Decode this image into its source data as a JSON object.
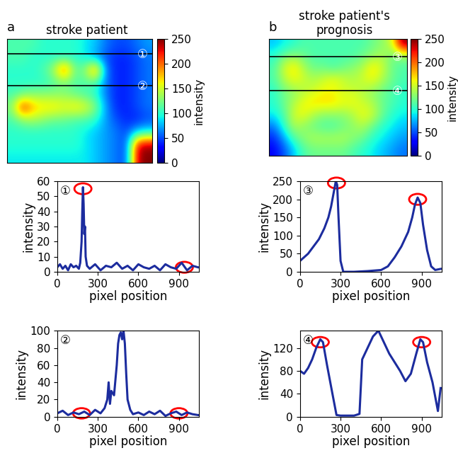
{
  "chart_data": [
    {
      "type": "heatmap",
      "panel": "a",
      "title": "stroke patient",
      "tick_labels": false,
      "cells": [
        [
          110,
          110,
          110,
          100,
          100,
          100,
          100,
          90,
          80,
          60,
          50,
          50,
          60,
          70
        ],
        [
          110,
          110,
          100,
          100,
          100,
          100,
          100,
          90,
          70,
          50,
          40,
          40,
          50,
          60
        ],
        [
          100,
          100,
          100,
          110,
          140,
          220,
          120,
          130,
          210,
          60,
          40,
          40,
          50,
          60
        ],
        [
          100,
          100,
          100,
          100,
          110,
          120,
          110,
          110,
          110,
          60,
          40,
          40,
          50,
          60
        ],
        [
          110,
          120,
          130,
          130,
          130,
          130,
          120,
          110,
          100,
          60,
          40,
          40,
          50,
          60
        ],
        [
          130,
          230,
          180,
          170,
          170,
          160,
          170,
          160,
          130,
          70,
          40,
          40,
          50,
          60
        ],
        [
          110,
          130,
          140,
          130,
          120,
          120,
          110,
          110,
          100,
          70,
          50,
          40,
          40,
          50
        ],
        [
          100,
          100,
          100,
          100,
          100,
          100,
          100,
          90,
          80,
          70,
          60,
          50,
          80,
          90
        ],
        [
          100,
          100,
          100,
          100,
          100,
          100,
          100,
          90,
          80,
          70,
          60,
          50,
          230,
          240
        ],
        [
          90,
          90,
          90,
          90,
          90,
          90,
          90,
          90,
          80,
          70,
          60,
          50,
          240,
          250
        ]
      ],
      "colorbar": {
        "range": [
          0,
          250
        ],
        "ticks": [
          0,
          50,
          100,
          150,
          200,
          250
        ],
        "label": "intensity"
      },
      "lines": [
        {
          "label": "①",
          "row": 0.7
        },
        {
          "label": "②",
          "row": 3.3
        }
      ]
    },
    {
      "type": "heatmap",
      "panel": "b",
      "title": "stroke patient's\nprognosis",
      "tick_labels": false,
      "cells": [
        [
          80,
          90,
          100,
          110,
          110,
          110,
          110,
          110,
          110,
          110,
          120,
          130,
          150,
          250
        ],
        [
          100,
          120,
          130,
          120,
          110,
          110,
          110,
          110,
          110,
          120,
          130,
          140,
          120,
          130
        ],
        [
          110,
          150,
          170,
          140,
          120,
          120,
          110,
          120,
          130,
          140,
          170,
          150,
          120,
          110
        ],
        [
          110,
          140,
          160,
          150,
          140,
          150,
          160,
          150,
          140,
          150,
          160,
          140,
          120,
          110
        ],
        [
          100,
          120,
          130,
          140,
          150,
          160,
          160,
          150,
          150,
          140,
          130,
          120,
          110,
          100
        ],
        [
          100,
          120,
          140,
          160,
          170,
          170,
          170,
          160,
          160,
          150,
          140,
          120,
          110,
          100
        ],
        [
          90,
          110,
          150,
          160,
          140,
          130,
          130,
          130,
          140,
          160,
          150,
          120,
          100,
          90
        ],
        [
          60,
          100,
          140,
          130,
          120,
          110,
          110,
          120,
          130,
          140,
          120,
          100,
          90,
          80
        ],
        [
          40,
          70,
          110,
          130,
          140,
          140,
          140,
          140,
          130,
          120,
          100,
          90,
          80,
          70
        ],
        [
          30,
          50,
          80,
          110,
          120,
          120,
          120,
          120,
          110,
          100,
          90,
          80,
          70,
          60
        ]
      ],
      "colorbar": {
        "range": [
          0,
          250
        ],
        "ticks": [
          0,
          50,
          100,
          150,
          200,
          250
        ],
        "label": "intensity"
      },
      "lines": [
        {
          "label": "③",
          "row": 1.0
        },
        {
          "label": "④",
          "row": 3.9
        }
      ]
    },
    {
      "type": "line",
      "label": "①",
      "x_label": "pixel position",
      "y_label": "intensity",
      "xlim": [
        0,
        1050
      ],
      "xticks": [
        0,
        300,
        600,
        900
      ],
      "ylim": [
        0,
        60
      ],
      "yticks": [
        0,
        10,
        20,
        30,
        40,
        50,
        60
      ],
      "x": [
        0,
        20,
        40,
        60,
        80,
        100,
        120,
        140,
        160,
        170,
        180,
        185,
        190,
        195,
        200,
        205,
        210,
        220,
        240,
        280,
        320,
        360,
        400,
        440,
        480,
        520,
        560,
        600,
        640,
        680,
        720,
        760,
        800,
        840,
        880,
        920,
        960,
        1000,
        1040
      ],
      "series": [
        {
          "color": "#1c2c9e",
          "values": [
            3,
            5,
            2,
            4,
            1,
            5,
            3,
            4,
            2,
            6,
            20,
            40,
            56,
            45,
            25,
            30,
            10,
            4,
            2,
            5,
            1,
            4,
            3,
            6,
            2,
            4,
            1,
            5,
            3,
            2,
            4,
            1,
            5,
            3,
            2,
            6,
            1,
            4,
            3
          ]
        }
      ],
      "highlights": [
        {
          "x": 190,
          "y": 55
        },
        {
          "x": 940,
          "y": 3
        }
      ]
    },
    {
      "type": "line",
      "label": "②",
      "x_label": "pixel position",
      "y_label": "intensity",
      "xlim": [
        0,
        1050
      ],
      "xticks": [
        0,
        300,
        600,
        900
      ],
      "ylim": [
        0,
        100
      ],
      "yticks": [
        0,
        20,
        40,
        60,
        80,
        100
      ],
      "x": [
        0,
        40,
        80,
        120,
        160,
        200,
        240,
        280,
        320,
        350,
        370,
        380,
        390,
        400,
        420,
        440,
        450,
        460,
        470,
        480,
        490,
        500,
        510,
        520,
        540,
        560,
        600,
        640,
        680,
        720,
        760,
        800,
        840,
        880,
        920,
        960,
        1000,
        1040
      ],
      "series": [
        {
          "color": "#1c2c9e",
          "values": [
            4,
            7,
            2,
            5,
            3,
            6,
            2,
            8,
            4,
            10,
            20,
            40,
            15,
            30,
            25,
            60,
            85,
            95,
            98,
            90,
            100,
            85,
            50,
            20,
            8,
            3,
            5,
            2,
            6,
            3,
            7,
            1,
            4,
            6,
            2,
            5,
            3,
            2
          ]
        }
      ],
      "highlights": [
        {
          "x": 180,
          "y": 4
        },
        {
          "x": 900,
          "y": 4
        }
      ]
    },
    {
      "type": "line",
      "label": "③",
      "x_label": "pixel position",
      "y_label": "intensity",
      "xlim": [
        0,
        1050
      ],
      "xticks": [
        0,
        300,
        600,
        900
      ],
      "ylim": [
        0,
        250
      ],
      "yticks": [
        0,
        50,
        100,
        150,
        200,
        250
      ],
      "x": [
        0,
        30,
        60,
        100,
        140,
        180,
        210,
        230,
        250,
        265,
        275,
        285,
        300,
        320,
        400,
        500,
        600,
        650,
        700,
        750,
        800,
        830,
        850,
        870,
        890,
        910,
        940,
        970,
        1000,
        1040
      ],
      "series": [
        {
          "color": "#1c2c9e",
          "values": [
            30,
            40,
            50,
            70,
            90,
            120,
            150,
            180,
            220,
            250,
            240,
            150,
            30,
            0,
            0,
            2,
            5,
            15,
            40,
            70,
            110,
            150,
            185,
            205,
            190,
            130,
            60,
            15,
            5,
            8
          ]
        }
      ],
      "highlights": [
        {
          "x": 270,
          "y": 245
        },
        {
          "x": 870,
          "y": 200
        }
      ]
    },
    {
      "type": "line",
      "label": "④",
      "x_label": "pixel position",
      "y_label": "intensity",
      "xlim": [
        0,
        1050
      ],
      "xticks": [
        0,
        300,
        600,
        900
      ],
      "ylim": [
        0,
        150
      ],
      "yticks": [
        0,
        40,
        80,
        120
      ],
      "x": [
        0,
        30,
        60,
        90,
        120,
        150,
        170,
        200,
        240,
        270,
        300,
        400,
        440,
        460,
        500,
        540,
        580,
        620,
        660,
        700,
        740,
        780,
        820,
        860,
        890,
        910,
        940,
        980,
        1020,
        1040
      ],
      "series": [
        {
          "color": "#1c2c9e",
          "values": [
            80,
            75,
            85,
            100,
            120,
            135,
            130,
            90,
            40,
            3,
            2,
            2,
            5,
            100,
            120,
            140,
            150,
            130,
            110,
            95,
            80,
            62,
            75,
            110,
            135,
            130,
            95,
            60,
            10,
            50
          ]
        }
      ],
      "highlights": [
        {
          "x": 150,
          "y": 130
        },
        {
          "x": 900,
          "y": 130
        }
      ]
    }
  ]
}
